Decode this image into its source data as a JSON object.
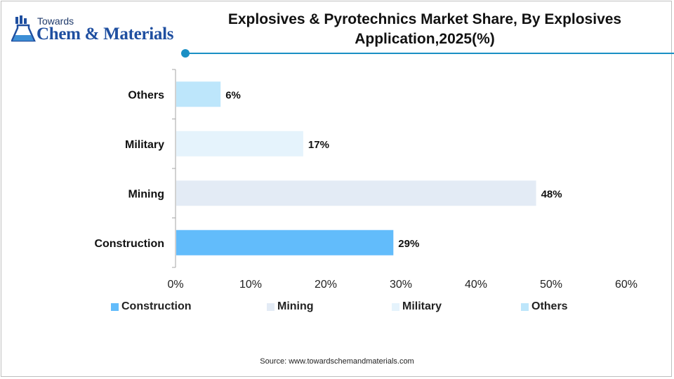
{
  "brand": {
    "line1": "Towards",
    "line2": "Chem & Materials"
  },
  "chart_data": {
    "type": "bar",
    "orientation": "horizontal",
    "title": "Explosives & Pyrotechnics Market Share, By Explosives Application,2025(%)",
    "title_lines": [
      "Explosives & Pyrotechnics Market Share, By Explosives",
      "Application,2025(%)"
    ],
    "categories": [
      "Construction",
      "Mining",
      "Military",
      "Others"
    ],
    "values": [
      29,
      48,
      17,
      6
    ],
    "value_labels": [
      "29%",
      "48%",
      "17%",
      "6%"
    ],
    "colors": [
      "#62bcfb",
      "#e3ebf5",
      "#e5f3fc",
      "#bde6fb"
    ],
    "xlim": [
      0,
      60
    ],
    "xticks": [
      0,
      10,
      20,
      30,
      40,
      50,
      60
    ],
    "xtick_labels": [
      "0%",
      "10%",
      "20%",
      "30%",
      "40%",
      "50%",
      "60%"
    ],
    "xlabel": "",
    "ylabel": "",
    "grid": false,
    "legend_position": "bottom",
    "legend": [
      "Construction",
      "Mining",
      "Military",
      "Others"
    ]
  },
  "source": "Source:  www.towardschemandmaterials.com",
  "accent_color": "#1a8fc4"
}
